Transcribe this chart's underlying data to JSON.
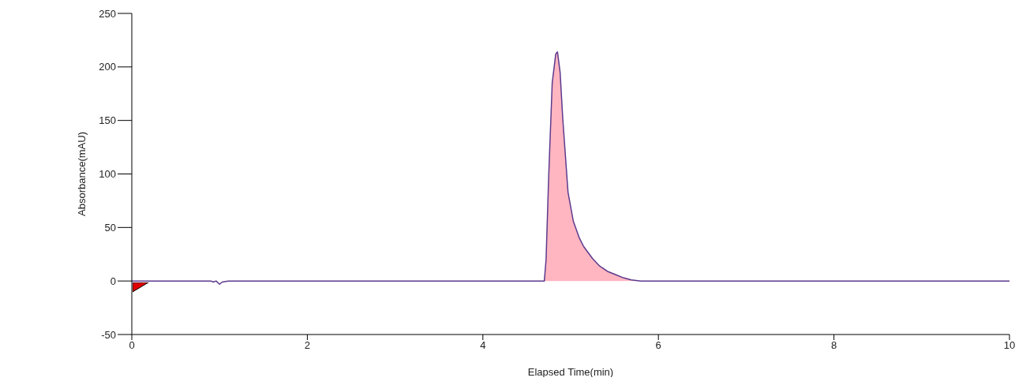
{
  "chart_data": {
    "type": "line",
    "xlabel": "Elapsed Time(min)",
    "ylabel": "Absorbance(mAU)",
    "xlim": [
      0,
      10
    ],
    "xticks": [
      0,
      2,
      4,
      6,
      8,
      10
    ],
    "ylim": [
      -50,
      250
    ],
    "yticks": [
      -50,
      0,
      50,
      100,
      150,
      200,
      250
    ],
    "grid": false,
    "marker": "none",
    "line_style": "solid",
    "series": [
      {
        "color": "#5c3a8e",
        "x": [
          0,
          0.5,
          0.9,
          0.93,
          0.96,
          1.0,
          1.03,
          1.1,
          2,
          3,
          4,
          4.6,
          4.7,
          4.72,
          4.75,
          4.79,
          4.83,
          4.85,
          4.88,
          4.91,
          4.97,
          5.03,
          5.1,
          5.15,
          5.25,
          5.33,
          5.42,
          5.51,
          5.6,
          5.69,
          5.8,
          6,
          7,
          8,
          9,
          10
        ],
        "values": [
          0,
          0,
          0,
          -1,
          0,
          -3,
          -1,
          0,
          0,
          0,
          0,
          0,
          0,
          20,
          98,
          185,
          212,
          214,
          195,
          152,
          83,
          56,
          40,
          32,
          21,
          14,
          9,
          6,
          3,
          1,
          0,
          0,
          0,
          0,
          0,
          0
        ]
      },
      {
        "type": "area",
        "color": "#ffb6c1",
        "x": [
          4.7,
          4.72,
          4.75,
          4.79,
          4.83,
          4.85,
          4.88,
          4.91,
          4.97,
          5.03,
          5.1,
          5.15,
          5.25,
          5.33,
          5.42,
          5.51,
          5.6,
          5.69,
          5.8
        ],
        "values": [
          0,
          20,
          98,
          185,
          212,
          214,
          195,
          152,
          83,
          56,
          40,
          32,
          21,
          14,
          9,
          6,
          3,
          1,
          0
        ]
      }
    ]
  }
}
